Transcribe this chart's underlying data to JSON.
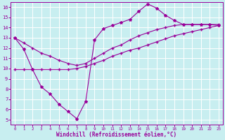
{
  "xlabel": "Windchill (Refroidissement éolien,°C)",
  "bg_color": "#c8eef0",
  "line_color": "#990099",
  "grid_color": "#ffffff",
  "xlim": [
    -0.5,
    23.5
  ],
  "ylim": [
    4.5,
    16.5
  ],
  "xticks": [
    0,
    1,
    2,
    3,
    4,
    5,
    6,
    7,
    8,
    9,
    10,
    11,
    12,
    13,
    14,
    15,
    16,
    17,
    18,
    19,
    20,
    21,
    22,
    23
  ],
  "yticks": [
    5,
    6,
    7,
    8,
    9,
    10,
    11,
    12,
    13,
    14,
    15,
    16
  ],
  "line1_x": [
    0,
    1,
    2,
    3,
    4,
    5,
    6,
    7,
    8,
    9,
    10,
    11,
    12,
    13,
    14,
    15,
    16,
    17,
    18,
    19,
    20,
    21,
    22,
    23
  ],
  "line1_y": [
    13.0,
    11.9,
    9.9,
    8.2,
    7.5,
    6.5,
    5.8,
    5.1,
    6.8,
    12.8,
    13.9,
    14.2,
    14.5,
    14.8,
    15.6,
    16.3,
    15.9,
    15.2,
    14.7,
    14.3,
    14.3,
    14.3,
    14.3,
    14.2
  ],
  "line2_x": [
    0,
    1,
    2,
    3,
    4,
    5,
    6,
    7,
    8,
    9,
    10,
    11,
    12,
    13,
    14,
    15,
    16,
    17,
    18,
    19,
    20,
    21,
    22,
    23
  ],
  "line2_y": [
    13.0,
    12.5,
    12.0,
    11.5,
    11.2,
    10.8,
    10.5,
    10.3,
    10.5,
    11.0,
    11.5,
    12.0,
    12.3,
    12.8,
    13.2,
    13.5,
    13.8,
    14.0,
    14.2,
    14.3,
    14.3,
    14.3,
    14.3,
    14.3
  ],
  "line3_x": [
    0,
    1,
    2,
    3,
    4,
    5,
    6,
    7,
    8,
    9,
    10,
    11,
    12,
    13,
    14,
    15,
    16,
    17,
    18,
    19,
    20,
    21,
    22,
    23
  ],
  "line3_y": [
    9.9,
    9.9,
    9.9,
    9.9,
    9.9,
    9.9,
    9.9,
    10.0,
    10.2,
    10.5,
    10.8,
    11.2,
    11.5,
    11.8,
    12.0,
    12.3,
    12.6,
    12.9,
    13.2,
    13.4,
    13.6,
    13.8,
    14.0,
    14.2
  ]
}
